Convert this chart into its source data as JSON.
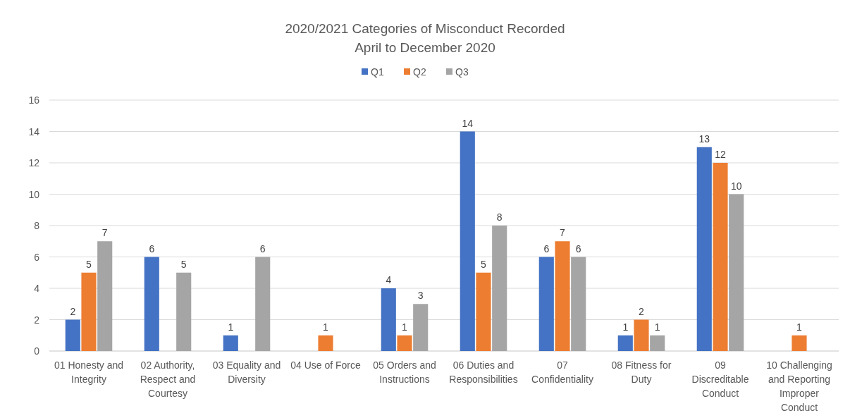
{
  "chart_data": {
    "type": "bar",
    "title": "2020/2021 Categories of Misconduct Recorded",
    "subtitle": "April to December 2020",
    "categories": [
      "01 Honesty and Integrity",
      "02 Authority, Respect and Courtesy",
      "03 Equality and Diversity",
      "04 Use of Force",
      "05 Orders and Instructions",
      "06 Duties and Responsibilities",
      "07 Confidentiality",
      "08 Fitness for Duty",
      "09 Discreditable Conduct",
      "10 Challenging and Reporting Improper Conduct"
    ],
    "series": [
      {
        "name": "Q1",
        "color": "#4472c4",
        "values": [
          2,
          6,
          1,
          null,
          4,
          14,
          6,
          1,
          13,
          null
        ]
      },
      {
        "name": "Q2",
        "color": "#ed7d31",
        "values": [
          5,
          null,
          null,
          1,
          1,
          5,
          7,
          2,
          12,
          1
        ]
      },
      {
        "name": "Q3",
        "color": "#a5a5a5",
        "values": [
          7,
          5,
          6,
          null,
          3,
          8,
          6,
          1,
          10,
          null
        ]
      }
    ],
    "ylim": [
      0,
      16
    ],
    "yticks": [
      0,
      2,
      4,
      6,
      8,
      10,
      12,
      14,
      16
    ],
    "grid": "y",
    "legend": "top",
    "data_labels": true
  }
}
